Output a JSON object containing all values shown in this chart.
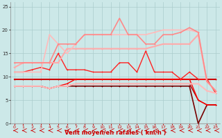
{
  "xlabel": "Vent moyen/en rafales ( km/h )",
  "bg_color": "#cce8e8",
  "grid_color": "#aacccc",
  "xlim": [
    -0.5,
    23.5
  ],
  "ylim": [
    0,
    26
  ],
  "yticks": [
    0,
    5,
    10,
    15,
    20,
    25
  ],
  "xticks": [
    0,
    1,
    2,
    3,
    4,
    5,
    6,
    7,
    8,
    9,
    10,
    11,
    12,
    13,
    14,
    15,
    16,
    17,
    18,
    19,
    20,
    21,
    22,
    23
  ],
  "lines": [
    {
      "x": [
        0,
        1,
        2,
        3,
        4,
        5,
        6,
        7,
        8,
        9,
        10,
        11,
        12,
        13,
        14,
        15,
        16,
        17,
        18,
        19,
        20,
        21,
        22,
        23
      ],
      "y": [
        9.5,
        9.5,
        9.5,
        9.5,
        9.5,
        9.5,
        9.5,
        9.5,
        9.5,
        9.5,
        9.5,
        9.5,
        9.5,
        9.5,
        9.5,
        9.5,
        9.5,
        9.5,
        9.5,
        9.5,
        9.5,
        9.5,
        9.5,
        9.5
      ],
      "color": "#cc0000",
      "lw": 1.5,
      "marker": "+"
    },
    {
      "x": [
        0,
        1,
        2,
        3,
        4,
        5,
        6,
        7,
        8,
        9,
        10,
        11,
        12,
        13,
        14,
        15,
        16,
        17,
        18,
        19,
        20,
        21,
        22,
        23
      ],
      "y": [
        8,
        8,
        8,
        8,
        7.5,
        8,
        8,
        8,
        8,
        8,
        8,
        8,
        8,
        8,
        8,
        8,
        8,
        8,
        8,
        8,
        8,
        0,
        4,
        4
      ],
      "color": "#770000",
      "lw": 1.2,
      "marker": "+"
    },
    {
      "x": [
        0,
        1,
        2,
        3,
        4,
        5,
        6,
        7,
        8,
        9,
        10,
        11,
        12,
        13,
        14,
        15,
        16,
        17,
        18,
        19,
        20,
        21,
        22,
        23
      ],
      "y": [
        8,
        8,
        8,
        8,
        7.5,
        8,
        8,
        8.5,
        8.5,
        8.5,
        8.5,
        8.5,
        8.5,
        8.5,
        8.5,
        8.5,
        8.5,
        8.5,
        8.5,
        8.5,
        8.5,
        5,
        4,
        4
      ],
      "color": "#aa0000",
      "lw": 1.0,
      "marker": "+"
    },
    {
      "x": [
        0,
        1,
        2,
        3,
        4,
        5,
        6,
        7,
        8,
        9,
        10,
        11,
        12,
        13,
        14,
        15,
        16,
        17,
        18,
        19,
        20,
        21,
        22,
        23
      ],
      "y": [
        8,
        8,
        8,
        8,
        7.5,
        8,
        8.5,
        9.5,
        9.5,
        9.5,
        9.5,
        9.5,
        9.5,
        9.5,
        9.5,
        9.5,
        9.5,
        9.5,
        9.5,
        9.5,
        9.5,
        5,
        4,
        4
      ],
      "color": "#ff0000",
      "lw": 1.0,
      "marker": "+"
    },
    {
      "x": [
        0,
        1,
        2,
        3,
        4,
        5,
        6,
        7,
        8,
        9,
        10,
        11,
        12,
        13,
        14,
        15,
        16,
        17,
        18,
        19,
        20,
        21,
        22,
        23
      ],
      "y": [
        11,
        11,
        11.5,
        12,
        11.5,
        15,
        11.5,
        11.5,
        11.5,
        11,
        11,
        11,
        13,
        13,
        11,
        15.5,
        11,
        11,
        11,
        9.5,
        11,
        9.5,
        9.5,
        6.5
      ],
      "color": "#ff2222",
      "lw": 1.0,
      "marker": "+"
    },
    {
      "x": [
        0,
        1,
        2,
        3,
        4,
        5,
        6,
        7,
        8,
        9,
        10,
        11,
        12,
        13,
        14,
        15,
        16,
        17,
        18,
        19,
        20,
        21,
        22,
        23
      ],
      "y": [
        8,
        8,
        8,
        8,
        7.5,
        8,
        8,
        8.5,
        8.5,
        8.5,
        8.5,
        8.5,
        8.5,
        8.5,
        8.5,
        8.5,
        8.5,
        8.5,
        8.5,
        8.5,
        8.5,
        8.5,
        7,
        6.5
      ],
      "color": "#ffbbbb",
      "lw": 1.5,
      "marker": "+"
    },
    {
      "x": [
        0,
        1,
        2,
        3,
        4,
        5,
        6,
        7,
        8,
        9,
        10,
        11,
        12,
        13,
        14,
        15,
        16,
        17,
        18,
        19,
        20,
        21,
        22,
        23
      ],
      "y": [
        12,
        13,
        13,
        13,
        13,
        13,
        16,
        16,
        16,
        16,
        16,
        16,
        16,
        16,
        16,
        16,
        16.5,
        17,
        17,
        17,
        17,
        19,
        9,
        7
      ],
      "color": "#ffaaaa",
      "lw": 1.5,
      "marker": "+"
    },
    {
      "x": [
        0,
        1,
        2,
        3,
        4,
        5,
        6,
        7,
        8,
        9,
        10,
        11,
        12,
        13,
        14,
        15,
        16,
        17,
        18,
        19,
        20,
        21,
        22,
        23
      ],
      "y": [
        11,
        11,
        11,
        11,
        19,
        17,
        15,
        17,
        19,
        19,
        19,
        19,
        19,
        19,
        19,
        19,
        19.5,
        20,
        20,
        20,
        20,
        19.5,
        9,
        7
      ],
      "color": "#ffbbbb",
      "lw": 1.2,
      "marker": "+"
    },
    {
      "x": [
        0,
        1,
        2,
        3,
        4,
        5,
        6,
        7,
        8,
        9,
        10,
        11,
        12,
        13,
        14,
        15,
        16,
        17,
        18,
        19,
        20,
        21,
        22,
        23
      ],
      "y": [
        13,
        13,
        13,
        13,
        13,
        17,
        17,
        17,
        19,
        19,
        19,
        19,
        22.5,
        19,
        19,
        17,
        17,
        19,
        19,
        19.5,
        20.5,
        19.5,
        9,
        7
      ],
      "color": "#ff8888",
      "lw": 1.2,
      "marker": "+"
    }
  ]
}
